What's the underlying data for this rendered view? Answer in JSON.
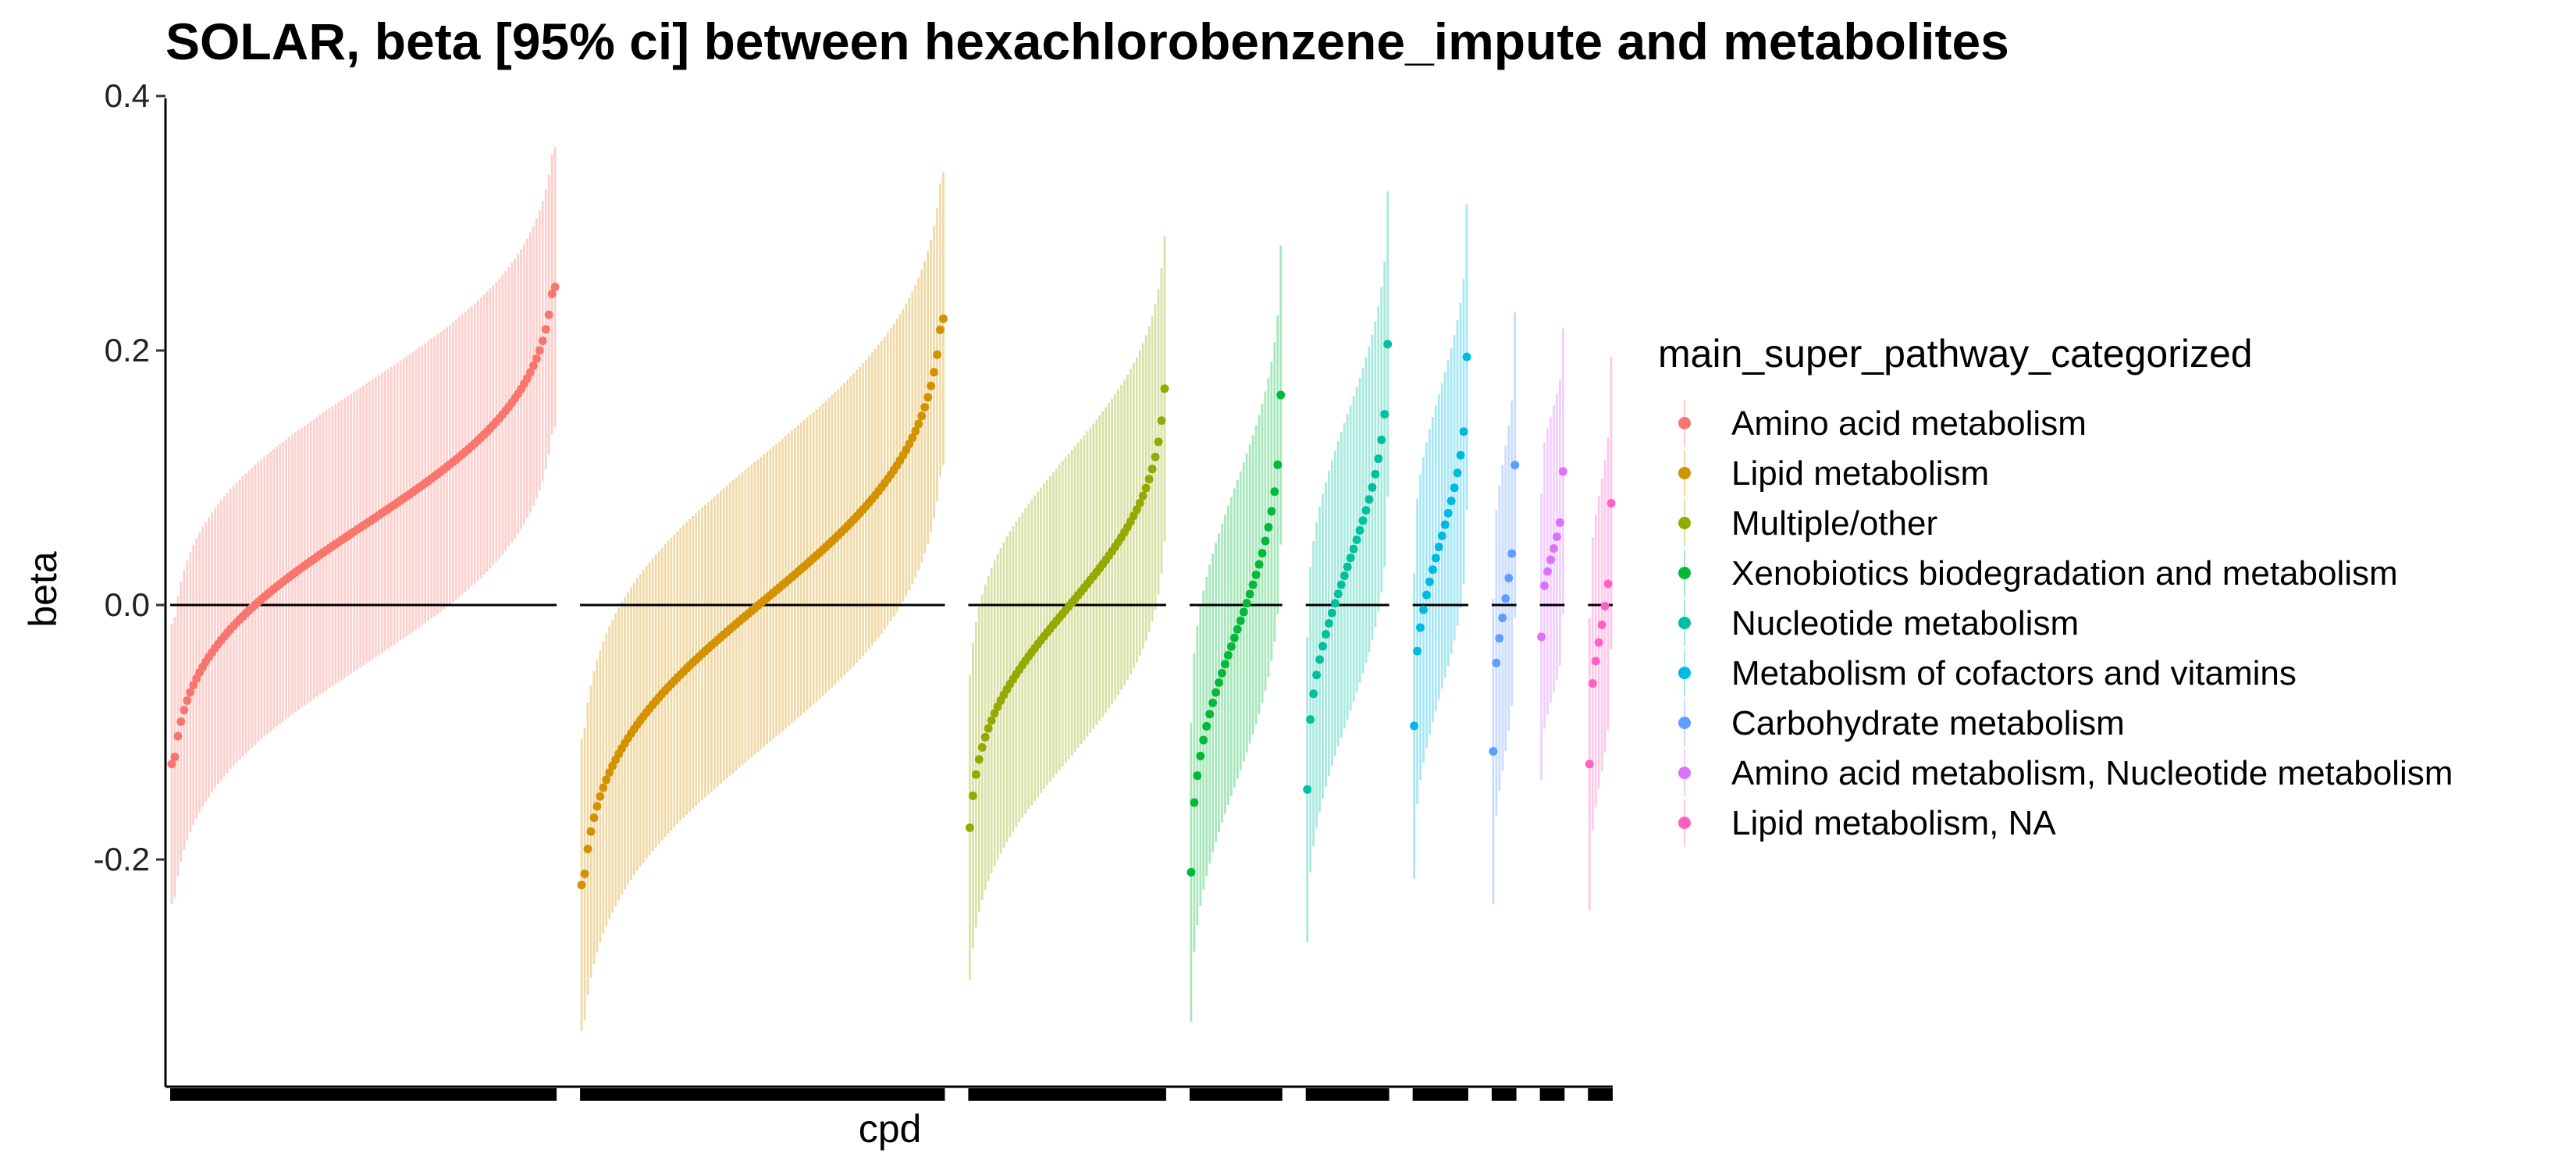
{
  "chart_data": {
    "type": "scatter",
    "title": "SOLAR, beta [95% ci] between hexachlorobenzene_impute and metabolites",
    "xlabel": "cpd",
    "ylabel": "beta",
    "ylim": [
      -0.38,
      0.4
    ],
    "y_ticks": [
      {
        "value": 0.4,
        "label": "0.4"
      },
      {
        "value": 0.2,
        "label": "0.2"
      },
      {
        "value": 0.0,
        "label": "0.0"
      },
      {
        "value": -0.2,
        "label": "-0.2"
      }
    ],
    "reference_line": 0,
    "legend_title": "main_super_pathway_categorized",
    "legend_position": "right",
    "grid": false,
    "groups": [
      {
        "name": "Amino acid metabolism",
        "color": "#F8766D",
        "n": 125,
        "beta_min": -0.125,
        "beta_max": 0.25,
        "ci_lo": -0.23,
        "ci_hi": 0.365
      },
      {
        "name": "Lipid metabolism",
        "color": "#D39200",
        "n": 118,
        "beta_min": -0.22,
        "beta_max": 0.225,
        "ci_lo": -0.34,
        "ci_hi": 0.335
      },
      {
        "name": "Multiple/other",
        "color": "#93AA00",
        "n": 64,
        "beta_min": -0.175,
        "beta_max": 0.17,
        "ci_lo": -0.295,
        "ci_hi": 0.29
      },
      {
        "name": "Xenobiotics biodegradation and metabolism",
        "color": "#00BA38",
        "n": 30,
        "beta_min": -0.21,
        "beta_max": 0.165,
        "ci_lo": -0.325,
        "ci_hi": 0.285
      },
      {
        "name": "Nucleotide metabolism",
        "color": "#00C19F",
        "n": 27,
        "beta_min": -0.145,
        "beta_max": 0.205,
        "ci_lo": -0.265,
        "ci_hi": 0.325
      },
      {
        "name": "Metabolism of cofactors and vitamins",
        "color": "#00B9E3",
        "n": 18,
        "beta_min": -0.095,
        "beta_max": 0.195,
        "ci_lo": -0.215,
        "ci_hi": 0.315
      },
      {
        "name": "Carbohydrate metabolism",
        "color": "#619CFF",
        "n": 8,
        "beta_min": -0.115,
        "beta_max": 0.11,
        "ci_lo": -0.235,
        "ci_hi": 0.23
      },
      {
        "name": "Amino acid metabolism, Nucleotide metabolism",
        "color": "#DB72FB",
        "n": 8,
        "beta_min": -0.025,
        "beta_max": 0.105,
        "ci_lo": -0.135,
        "ci_hi": 0.22
      },
      {
        "name": "Lipid metabolism, NA",
        "color": "#FF61C3",
        "n": 8,
        "beta_min": -0.125,
        "beta_max": 0.08,
        "ci_lo": -0.24,
        "ci_hi": 0.195
      }
    ]
  }
}
